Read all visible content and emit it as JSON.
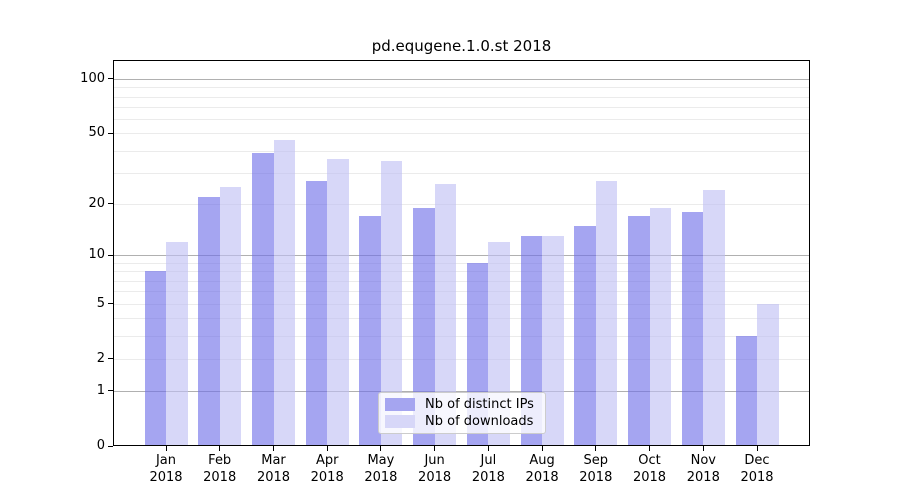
{
  "title": "pd.equgene.1.0.st 2018",
  "legend": {
    "items": [
      {
        "label": "Nb of distinct IPs",
        "color": "#a5a5f0"
      },
      {
        "label": "Nb of downloads",
        "color": "#d7d7f8"
      }
    ]
  },
  "axis_colors": {
    "spine": "#000000",
    "major_grid": "#b0b0b0",
    "minor_grid": "#ebebeb",
    "text": "#000000"
  },
  "chart_data": {
    "type": "bar",
    "title": "pd.equgene.1.0.st 2018",
    "categories": [
      "Jan 2018",
      "Feb 2018",
      "Mar 2018",
      "Apr 2018",
      "May 2018",
      "Jun 2018",
      "Jul 2018",
      "Aug 2018",
      "Sep 2018",
      "Oct 2018",
      "Nov 2018",
      "Dec 2018"
    ],
    "series": [
      {
        "name": "Nb of distinct IPs",
        "color": "#a5a5f0",
        "fill": "rgba(110,110,232,0.62)",
        "values": [
          8,
          22,
          39,
          27,
          17,
          19,
          9,
          13,
          15,
          17,
          18,
          3
        ]
      },
      {
        "name": "Nb of downloads",
        "color": "#d7d7f8",
        "fill": "rgba(190,190,243,0.62)",
        "values": [
          12,
          25,
          46,
          36,
          35,
          26,
          12,
          13,
          27,
          19,
          24,
          5
        ]
      }
    ],
    "yscale": "log1p",
    "ylim": [
      0,
      127
    ],
    "y_ticks": [
      0,
      1,
      2,
      5,
      10,
      20,
      50,
      100
    ],
    "y_tick_labels": [
      "0",
      "1",
      "2",
      "5",
      "10",
      "20",
      "50",
      "100"
    ],
    "gridlines": {
      "major": [
        1,
        10,
        100
      ],
      "minor": [
        2,
        3,
        4,
        5,
        6,
        7,
        8,
        9,
        20,
        30,
        40,
        50,
        60,
        70,
        80,
        90
      ]
    },
    "grid": true,
    "xlabel": "",
    "ylabel": "",
    "legend_position": "lower center"
  }
}
